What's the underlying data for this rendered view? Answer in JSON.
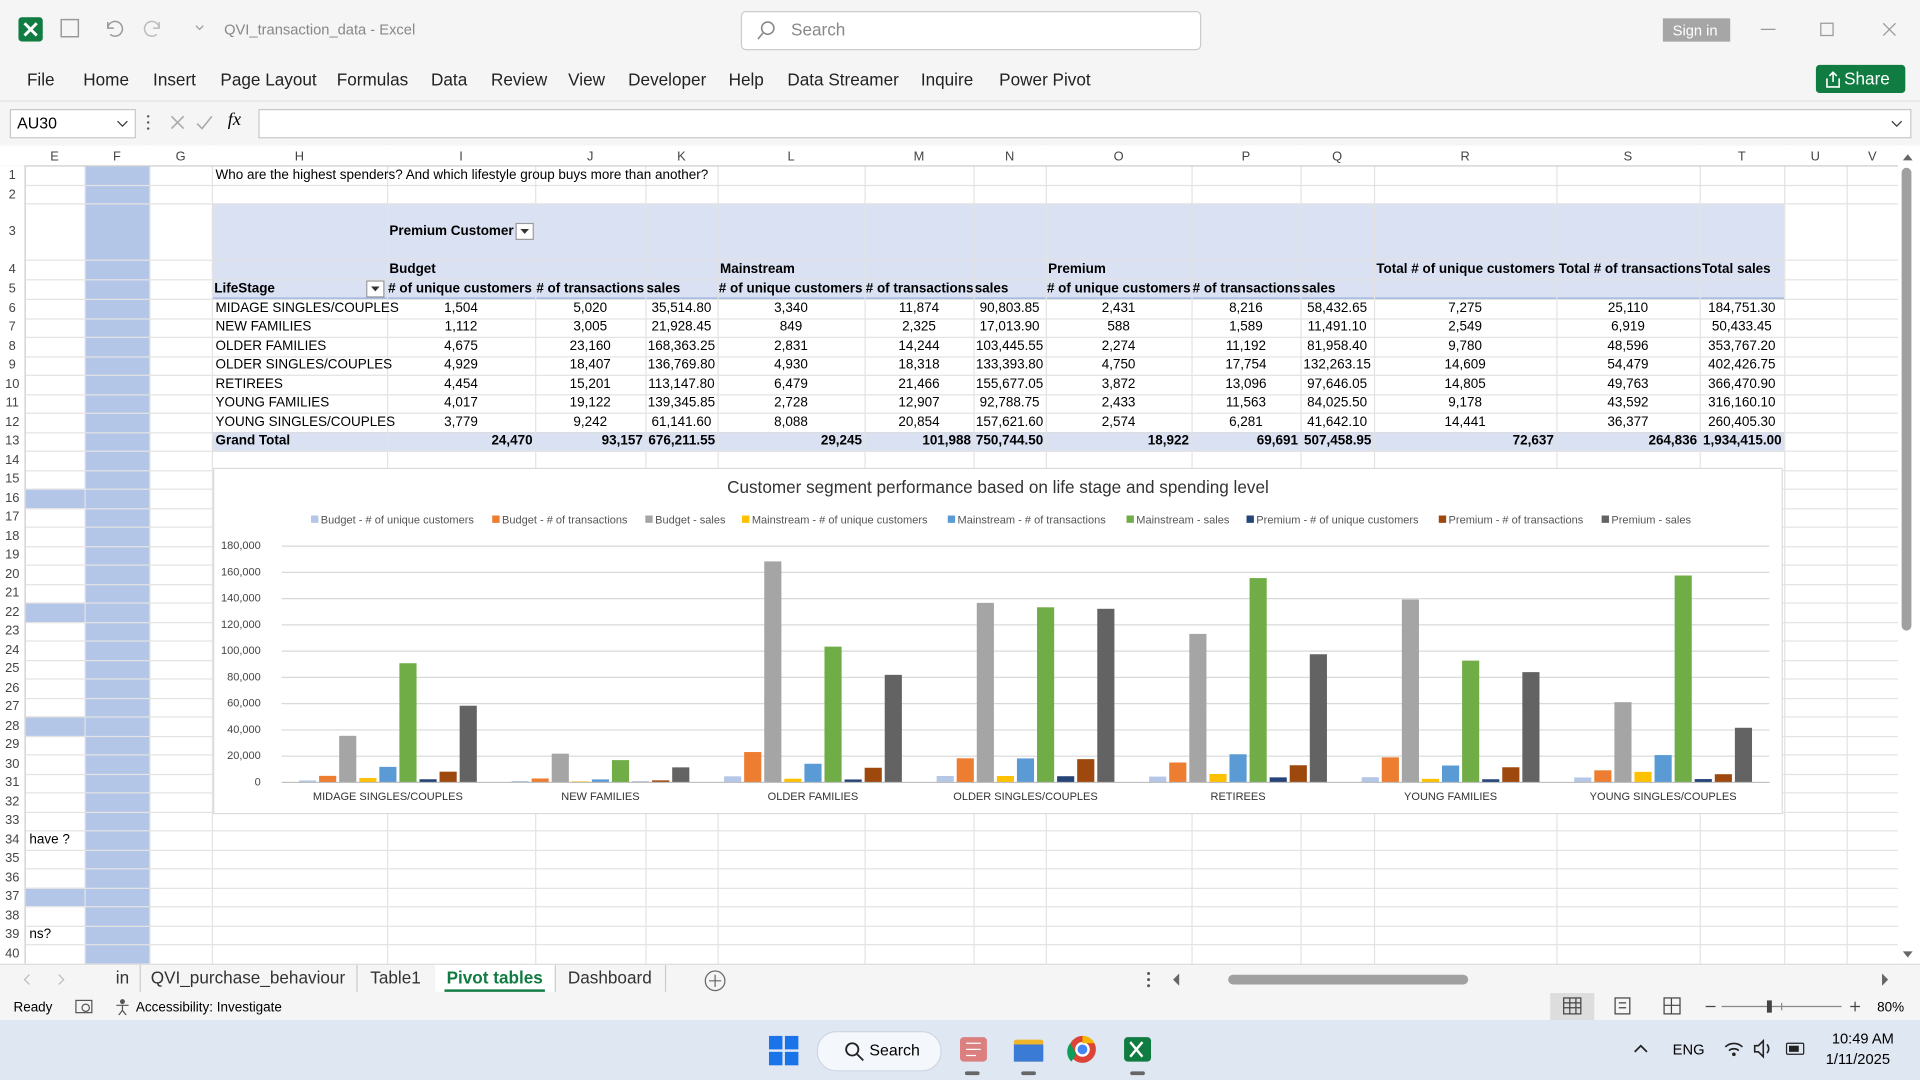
{
  "app": {
    "title": "QVI_transaction_data - Excel",
    "search": "Search",
    "sign_in": "Sign in",
    "share": "Share"
  },
  "ribbon_tabs": [
    "File",
    "Home",
    "Insert",
    "Page Layout",
    "Formulas",
    "Data",
    "Review",
    "View",
    "Developer",
    "Help",
    "Data Streamer",
    "Inquire",
    "Power Pivot"
  ],
  "formula_bar": {
    "name_box": "AU30",
    "fx": "fx"
  },
  "columns": [
    "E",
    "F",
    "G",
    "H",
    "I",
    "J",
    "K",
    "L",
    "M",
    "N",
    "O",
    "P",
    "Q",
    "R",
    "S",
    "T",
    "U",
    "V"
  ],
  "row_numbers": [
    1,
    2,
    3,
    4,
    5,
    6,
    7,
    8,
    9,
    10,
    11,
    12,
    13,
    14,
    15,
    16,
    17,
    18,
    19,
    20,
    21,
    22,
    23,
    24,
    25,
    26,
    27,
    28,
    29,
    30,
    31,
    32,
    33,
    34,
    35,
    36,
    37,
    38,
    39,
    40
  ],
  "cells": {
    "H1": "Who are the highest spenders? And which lifestyle group buys more than another?",
    "E34": "have ?",
    "E39": "ns?"
  },
  "pivot": {
    "filter_label": "Premium Customer",
    "row_label": "LifeStage",
    "groups": [
      "Budget",
      "Mainstream",
      "Premium"
    ],
    "measures": [
      "# of unique customers",
      "# of transactions",
      "sales",
      "# of unique customers",
      "# of transactions",
      "sales",
      "# of unique customers",
      "# of transactions",
      "sales"
    ],
    "totals": [
      "Total # of unique customers",
      "Total # of transactions",
      "Total sales"
    ],
    "rows": [
      {
        "label": "MIDAGE SINGLES/COUPLES",
        "cells": [
          "1,504",
          "5,020",
          "35,514.80",
          "3,340",
          "11,874",
          "90,803.85",
          "2,431",
          "8,216",
          "58,432.65",
          "7,275",
          "25,110",
          "184,751.30"
        ]
      },
      {
        "label": "NEW FAMILIES",
        "cells": [
          "1,112",
          "3,005",
          "21,928.45",
          "849",
          "2,325",
          "17,013.90",
          "588",
          "1,589",
          "11,491.10",
          "2,549",
          "6,919",
          "50,433.45"
        ]
      },
      {
        "label": "OLDER FAMILIES",
        "cells": [
          "4,675",
          "23,160",
          "168,363.25",
          "2,831",
          "14,244",
          "103,445.55",
          "2,274",
          "11,192",
          "81,958.40",
          "9,780",
          "48,596",
          "353,767.20"
        ]
      },
      {
        "label": "OLDER SINGLES/COUPLES",
        "cells": [
          "4,929",
          "18,407",
          "136,769.80",
          "4,930",
          "18,318",
          "133,393.80",
          "4,750",
          "17,754",
          "132,263.15",
          "14,609",
          "54,479",
          "402,426.75"
        ]
      },
      {
        "label": "RETIREES",
        "cells": [
          "4,454",
          "15,201",
          "113,147.80",
          "6,479",
          "21,466",
          "155,677.05",
          "3,872",
          "13,096",
          "97,646.05",
          "14,805",
          "49,763",
          "366,470.90"
        ]
      },
      {
        "label": "YOUNG FAMILIES",
        "cells": [
          "4,017",
          "19,122",
          "139,345.85",
          "2,728",
          "12,907",
          "92,788.75",
          "2,433",
          "11,563",
          "84,025.50",
          "9,178",
          "43,592",
          "316,160.10"
        ]
      },
      {
        "label": "YOUNG SINGLES/COUPLES",
        "cells": [
          "3,779",
          "9,242",
          "61,141.60",
          "8,088",
          "20,854",
          "157,621.60",
          "2,574",
          "6,281",
          "41,642.10",
          "14,441",
          "36,377",
          "260,405.30"
        ]
      }
    ],
    "grand_total": {
      "label": "Grand Total",
      "cells": [
        "24,470",
        "93,157",
        "676,211.55",
        "29,245",
        "101,988",
        "750,744.50",
        "18,922",
        "69,691",
        "507,458.95",
        "72,637",
        "264,836",
        "1,934,415.00"
      ]
    }
  },
  "chart_data": {
    "type": "bar",
    "title": "Customer segment performance based on life stage and spending level",
    "categories": [
      "MIDAGE SINGLES/COUPLES",
      "NEW FAMILIES",
      "OLDER FAMILIES",
      "OLDER SINGLES/COUPLES",
      "RETIREES",
      "YOUNG FAMILIES",
      "YOUNG SINGLES/COUPLES"
    ],
    "series": [
      {
        "name": "Budget - # of unique customers",
        "color": "#b4c7e7",
        "values": [
          1504,
          1112,
          4675,
          4929,
          4454,
          4017,
          3779
        ]
      },
      {
        "name": "Budget - # of transactions",
        "color": "#ed7d31",
        "values": [
          5020,
          3005,
          23160,
          18407,
          15201,
          19122,
          9242
        ]
      },
      {
        "name": "Budget - sales",
        "color": "#a5a5a5",
        "values": [
          35514.8,
          21928.45,
          168363.25,
          136769.8,
          113147.8,
          139345.85,
          61141.6
        ]
      },
      {
        "name": "Mainstream - # of unique customers",
        "color": "#ffc000",
        "values": [
          3340,
          849,
          2831,
          4930,
          6479,
          2728,
          8088
        ]
      },
      {
        "name": "Mainstream - # of transactions",
        "color": "#5b9bd5",
        "values": [
          11874,
          2325,
          14244,
          18318,
          21466,
          12907,
          20854
        ]
      },
      {
        "name": "Mainstream - sales",
        "color": "#70ad47",
        "values": [
          90803.85,
          17013.9,
          103445.55,
          133393.8,
          155677.05,
          92788.75,
          157621.6
        ]
      },
      {
        "name": "Premium - # of unique customers",
        "color": "#264478",
        "values": [
          2431,
          588,
          2274,
          4750,
          3872,
          2433,
          2574
        ]
      },
      {
        "name": "Premium - # of transactions",
        "color": "#9e480e",
        "values": [
          8216,
          1589,
          11192,
          17754,
          13096,
          11563,
          6281
        ]
      },
      {
        "name": "Premium - sales",
        "color": "#636363",
        "values": [
          58432.65,
          11491.1,
          81958.4,
          132263.15,
          97646.05,
          84025.5,
          41642.1
        ]
      }
    ],
    "ylim": [
      0,
      180000
    ],
    "yticks": [
      0,
      {
        "value": 20000,
        "label": "20,000"
      },
      {
        "value": 40000,
        "label": "40,000"
      },
      {
        "value": 60000,
        "label": "60,000"
      },
      {
        "value": 80000,
        "label": "80,000"
      },
      {
        "value": 100000,
        "label": "100,000"
      },
      {
        "value": 120000,
        "label": "120,000"
      },
      {
        "value": 140000,
        "label": "140,000"
      },
      {
        "value": 160000,
        "label": "160,000"
      },
      {
        "value": 180000,
        "label": "180,000"
      }
    ],
    "grid": true,
    "legend": "top"
  },
  "sheet_tabs": [
    "in",
    "QVI_purchase_behaviour",
    "Table1",
    "Pivot tables",
    "Dashboard"
  ],
  "active_sheet": "Pivot tables",
  "status_bar": {
    "ready": "Ready",
    "accessibility": "Accessibility: Investigate",
    "zoom": "80%"
  },
  "taskbar": {
    "search": "Search",
    "language": "ENG",
    "time": "10:49 AM",
    "date": "1/11/2025"
  }
}
